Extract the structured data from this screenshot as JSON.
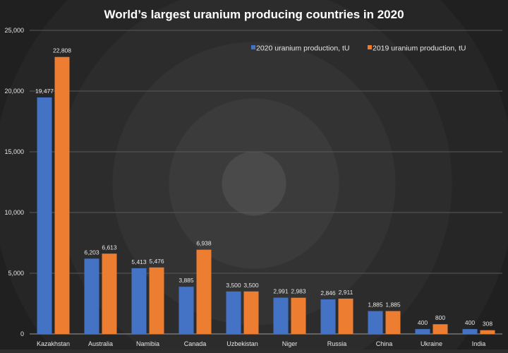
{
  "chart_data": {
    "type": "bar",
    "title": "World’s largest uranium producing countries in 2020",
    "categories": [
      "Kazakhstan",
      "Australia",
      "Namibia",
      "Canada",
      "Uzbekistan",
      "Niger",
      "Russia",
      "China",
      "Ukraine",
      "India"
    ],
    "series": [
      {
        "name": "2020 uranium production, tU",
        "color": "#4472c4",
        "values": [
          19477,
          6203,
          5413,
          3885,
          3500,
          2991,
          2846,
          1885,
          400,
          400
        ],
        "labels": [
          "19,477",
          "6,203",
          "5,413",
          "3,885",
          "3,500",
          "2,991",
          "2,846",
          "1,885",
          "400",
          "400"
        ]
      },
      {
        "name": "2019 uranium production, tU",
        "color": "#ed7d31",
        "values": [
          22808,
          6613,
          5476,
          6938,
          3500,
          2983,
          2911,
          1885,
          800,
          308
        ],
        "labels": [
          "22,808",
          "6,613",
          "5,476",
          "6,938",
          "3,500",
          "2,983",
          "2,911",
          "1,885",
          "800",
          "308"
        ]
      }
    ],
    "ylim": [
      0,
      25000
    ],
    "yticks": [
      0,
      5000,
      10000,
      15000,
      20000,
      25000
    ],
    "ytick_labels": [
      "0",
      "5,000",
      "10,000",
      "15,000",
      "20,000",
      "25,000"
    ],
    "grid": true,
    "legend_position": "top-right"
  }
}
